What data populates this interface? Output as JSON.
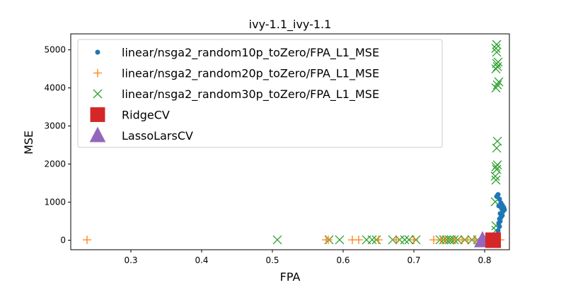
{
  "chart_data": {
    "type": "scatter",
    "title": "ivy-1.1_ivy-1.1",
    "xlabel": "FPA",
    "ylabel": "MSE",
    "xlim": [
      0.215,
      0.835
    ],
    "ylim": [
      -250,
      5420
    ],
    "xticks": [
      "0.3",
      "0.4",
      "0.5",
      "0.6",
      "0.7",
      "0.8"
    ],
    "yticks": [
      "0",
      "1000",
      "2000",
      "3000",
      "4000",
      "5000"
    ],
    "legend_position": "upper-left",
    "series": [
      {
        "name": "linear/nsga2_random10p_toZero/FPA_L1_MSE",
        "marker": "circle",
        "color": "#1f77b4",
        "points": [
          [
            0.819,
            1200
          ],
          [
            0.817,
            1150
          ],
          [
            0.821,
            1080
          ],
          [
            0.823,
            980
          ],
          [
            0.825,
            920
          ],
          [
            0.82,
            900
          ],
          [
            0.827,
            860
          ],
          [
            0.824,
            830
          ],
          [
            0.828,
            800
          ],
          [
            0.826,
            760
          ],
          [
            0.822,
            700
          ],
          [
            0.825,
            650
          ],
          [
            0.823,
            600
          ],
          [
            0.821,
            560
          ],
          [
            0.822,
            500
          ],
          [
            0.82,
            450
          ],
          [
            0.821,
            360
          ],
          [
            0.819,
            250
          ],
          [
            0.818,
            150
          ],
          [
            0.817,
            80
          ],
          [
            0.815,
            30
          ],
          [
            0.814,
            10
          ],
          [
            0.816,
            60
          ],
          [
            0.818,
            120
          ]
        ]
      },
      {
        "name": "linear/nsga2_random20p_toZero/FPA_L1_MSE",
        "marker": "plus",
        "color": "#ff7f0e",
        "points": [
          [
            0.238,
            10
          ],
          [
            0.576,
            10
          ],
          [
            0.579,
            10
          ],
          [
            0.613,
            10
          ],
          [
            0.622,
            10
          ],
          [
            0.65,
            10
          ],
          [
            0.675,
            10
          ],
          [
            0.7,
            10
          ],
          [
            0.728,
            10
          ],
          [
            0.738,
            10
          ],
          [
            0.745,
            10
          ],
          [
            0.758,
            10
          ],
          [
            0.768,
            10
          ],
          [
            0.776,
            10
          ],
          [
            0.786,
            10
          ],
          [
            0.8,
            10
          ],
          [
            0.808,
            10
          ],
          [
            0.812,
            10
          ],
          [
            0.815,
            10
          ],
          [
            0.818,
            10
          ],
          [
            0.822,
            10
          ]
        ]
      },
      {
        "name": "linear/nsga2_random30p_toZero/FPA_L1_MSE",
        "marker": "x",
        "color": "#2ca02c",
        "points": [
          [
            0.507,
            10
          ],
          [
            0.58,
            10
          ],
          [
            0.595,
            10
          ],
          [
            0.633,
            10
          ],
          [
            0.641,
            10
          ],
          [
            0.647,
            10
          ],
          [
            0.67,
            10
          ],
          [
            0.68,
            10
          ],
          [
            0.687,
            10
          ],
          [
            0.693,
            10
          ],
          [
            0.703,
            10
          ],
          [
            0.737,
            10
          ],
          [
            0.742,
            10
          ],
          [
            0.746,
            10
          ],
          [
            0.75,
            10
          ],
          [
            0.753,
            10
          ],
          [
            0.757,
            10
          ],
          [
            0.762,
            10
          ],
          [
            0.772,
            10
          ],
          [
            0.782,
            10
          ],
          [
            0.79,
            10
          ],
          [
            0.805,
            10
          ],
          [
            0.81,
            10
          ],
          [
            0.815,
            20
          ],
          [
            0.816,
            260
          ],
          [
            0.816,
            380
          ],
          [
            0.815,
            1010
          ],
          [
            0.816,
            1580
          ],
          [
            0.815,
            1680
          ],
          [
            0.817,
            1860
          ],
          [
            0.816,
            1930
          ],
          [
            0.818,
            1980
          ],
          [
            0.817,
            2420
          ],
          [
            0.818,
            2600
          ],
          [
            0.816,
            4000
          ],
          [
            0.818,
            4080
          ],
          [
            0.82,
            4160
          ],
          [
            0.816,
            4500
          ],
          [
            0.818,
            4560
          ],
          [
            0.817,
            4640
          ],
          [
            0.819,
            4680
          ],
          [
            0.817,
            4940
          ],
          [
            0.816,
            5040
          ],
          [
            0.817,
            5140
          ]
        ]
      },
      {
        "name": "RidgeCV",
        "marker": "square",
        "color": "#d62728",
        "points": [
          [
            0.812,
            0
          ]
        ]
      },
      {
        "name": "LassoLarsCV",
        "marker": "triangle",
        "color": "#9467bd",
        "points": [
          [
            0.797,
            0
          ]
        ]
      }
    ]
  }
}
